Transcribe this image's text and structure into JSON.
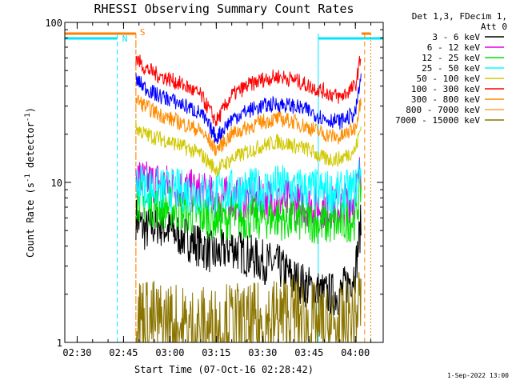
{
  "chart_data": {
    "type": "line",
    "title": "RHESSI Observing Summary Count Rates",
    "xlabel": "Start Time (07-Oct-16 02:28:42)",
    "ylabel_prefix": "Count Rate (s",
    "ylabel_sup": "-1",
    "ylabel_suffix": " detector",
    "ylabel_sup2": "-1",
    "ylabel_close": ")",
    "y_scale": "log",
    "ylim": [
      1,
      100
    ],
    "xlim": [
      "02:26",
      "04:09"
    ],
    "x_ticks": [
      "02:30",
      "02:45",
      "03:00",
      "03:15",
      "03:30",
      "03:45",
      "04:00"
    ],
    "y_ticks": [
      "1",
      "10",
      "100"
    ],
    "grid": false,
    "legend_header": [
      "Det 1,3, FDecim 1,",
      "Att 0"
    ],
    "legend_position": "right",
    "timestamp": "1-Sep-2022 13:00",
    "flag_labels": {
      "night": "N",
      "saa": "S"
    },
    "flags": {
      "night_intervals": [
        [
          "02:26",
          "02:43"
        ],
        [
          "03:48",
          "04:09"
        ]
      ],
      "saa_intervals": [
        [
          "02:26",
          "02:49"
        ],
        [
          "04:02",
          "04:05"
        ]
      ],
      "data_gap": [
        "02:45",
        "02:49"
      ],
      "data_end": "04:03"
    },
    "series": [
      {
        "name": "3 - 6 keV",
        "color": "#000000",
        "points": [
          [
            "02:49",
            6
          ],
          [
            "02:52",
            5
          ],
          [
            "02:56",
            5.5
          ],
          [
            "03:00",
            5
          ],
          [
            "03:05",
            4.5
          ],
          [
            "03:10",
            4
          ],
          [
            "03:15",
            3.5
          ],
          [
            "03:20",
            4
          ],
          [
            "03:25",
            3.5
          ],
          [
            "03:30",
            3.2
          ],
          [
            "03:35",
            3
          ],
          [
            "03:40",
            2.5
          ],
          [
            "03:45",
            2.2
          ],
          [
            "03:50",
            2
          ],
          [
            "03:55",
            2
          ],
          [
            "04:00",
            2.8
          ],
          [
            "04:02",
            6
          ]
        ]
      },
      {
        "name": "6 - 12 keV",
        "color": "#e000e0",
        "points": [
          [
            "02:49",
            11
          ],
          [
            "02:52",
            10
          ],
          [
            "02:56",
            10
          ],
          [
            "03:00",
            9.5
          ],
          [
            "03:05",
            9
          ],
          [
            "03:10",
            8.5
          ],
          [
            "03:15",
            8
          ],
          [
            "03:20",
            8
          ],
          [
            "03:25",
            7.8
          ],
          [
            "03:30",
            8
          ],
          [
            "03:35",
            7.8
          ],
          [
            "03:40",
            7.5
          ],
          [
            "03:45",
            7.2
          ],
          [
            "03:50",
            7
          ],
          [
            "03:55",
            7
          ],
          [
            "04:00",
            8
          ],
          [
            "04:02",
            13
          ]
        ]
      },
      {
        "name": "12 - 25 keV",
        "color": "#00e000",
        "points": [
          [
            "02:49",
            8
          ],
          [
            "02:52",
            7.5
          ],
          [
            "02:56",
            7
          ],
          [
            "03:00",
            7
          ],
          [
            "03:05",
            6.5
          ],
          [
            "03:10",
            6.2
          ],
          [
            "03:15",
            6
          ],
          [
            "03:20",
            6
          ],
          [
            "03:25",
            6
          ],
          [
            "03:30",
            6
          ],
          [
            "03:35",
            6
          ],
          [
            "03:40",
            5.8
          ],
          [
            "03:45",
            5.8
          ],
          [
            "03:50",
            5.5
          ],
          [
            "03:55",
            5.5
          ],
          [
            "04:00",
            6
          ],
          [
            "04:02",
            10
          ]
        ]
      },
      {
        "name": "25 - 50 keV",
        "color": "#00ffff",
        "points": [
          [
            "02:49",
            10
          ],
          [
            "02:52",
            9.5
          ],
          [
            "02:56",
            9
          ],
          [
            "03:00",
            9
          ],
          [
            "03:05",
            8.8
          ],
          [
            "03:10",
            8.5
          ],
          [
            "03:15",
            8.5
          ],
          [
            "03:20",
            8.8
          ],
          [
            "03:25",
            9
          ],
          [
            "03:30",
            9
          ],
          [
            "03:35",
            9.5
          ],
          [
            "03:40",
            9.2
          ],
          [
            "03:45",
            9
          ],
          [
            "03:50",
            8.8
          ],
          [
            "03:55",
            8.5
          ],
          [
            "04:00",
            9
          ],
          [
            "04:02",
            14
          ]
        ]
      },
      {
        "name": "50 - 100 keV",
        "color": "#d0c800",
        "points": [
          [
            "02:49",
            22
          ],
          [
            "02:52",
            20
          ],
          [
            "02:56",
            19
          ],
          [
            "03:00",
            18
          ],
          [
            "03:05",
            16.5
          ],
          [
            "03:10",
            15
          ],
          [
            "03:15",
            12
          ],
          [
            "03:20",
            14
          ],
          [
            "03:25",
            15.5
          ],
          [
            "03:30",
            17
          ],
          [
            "03:35",
            18
          ],
          [
            "03:40",
            17
          ],
          [
            "03:45",
            16
          ],
          [
            "03:50",
            14
          ],
          [
            "03:55",
            14
          ],
          [
            "04:00",
            16
          ],
          [
            "04:02",
            23
          ]
        ]
      },
      {
        "name": "100 - 300 keV",
        "color": "#ff0000",
        "points": [
          [
            "02:49",
            60
          ],
          [
            "02:52",
            52
          ],
          [
            "02:56",
            47
          ],
          [
            "03:00",
            44
          ],
          [
            "03:05",
            40
          ],
          [
            "03:10",
            35
          ],
          [
            "03:15",
            24
          ],
          [
            "03:20",
            35
          ],
          [
            "03:25",
            40
          ],
          [
            "03:30",
            44
          ],
          [
            "03:35",
            46
          ],
          [
            "03:40",
            44
          ],
          [
            "03:45",
            40
          ],
          [
            "03:50",
            37
          ],
          [
            "03:55",
            34
          ],
          [
            "04:00",
            40
          ],
          [
            "04:02",
            65
          ]
        ]
      },
      {
        "name": "300 - 800 keV",
        "color": "#ff8c00",
        "points": [
          [
            "02:49",
            33
          ],
          [
            "02:52",
            30
          ],
          [
            "02:56",
            27
          ],
          [
            "03:00",
            25
          ],
          [
            "03:05",
            23
          ],
          [
            "03:10",
            21
          ],
          [
            "03:15",
            16
          ],
          [
            "03:20",
            20
          ],
          [
            "03:25",
            22
          ],
          [
            "03:30",
            24
          ],
          [
            "03:35",
            25
          ],
          [
            "03:40",
            24
          ],
          [
            "03:45",
            22
          ],
          [
            "03:50",
            20
          ],
          [
            "03:55",
            19
          ],
          [
            "04:00",
            22
          ],
          [
            "04:02",
            35
          ]
        ]
      },
      {
        "name": "800 - 7000 keV",
        "color": "#ffa040",
        "points": []
      },
      {
        "name": "7000 - 15000 keV",
        "color": "#8b7500",
        "points": [
          [
            "02:49",
            1.5
          ],
          [
            "02:52",
            1.4
          ],
          [
            "02:56",
            1.3
          ],
          [
            "03:00",
            1.3
          ],
          [
            "03:05",
            1.2
          ],
          [
            "03:10",
            1.2
          ],
          [
            "03:15",
            1.2
          ],
          [
            "03:20",
            1.3
          ],
          [
            "03:25",
            1.2
          ],
          [
            "03:30",
            1.3
          ],
          [
            "03:35",
            1.4
          ],
          [
            "03:40",
            1.5
          ],
          [
            "03:45",
            1.3
          ],
          [
            "03:50",
            1.2
          ],
          [
            "03:55",
            1.2
          ],
          [
            "04:00",
            1.4
          ],
          [
            "04:02",
            2
          ]
        ]
      },
      {
        "name": "blue",
        "color": "#0000ff",
        "legend": false,
        "points": [
          [
            "02:49",
            44
          ],
          [
            "02:52",
            39
          ],
          [
            "02:56",
            35
          ],
          [
            "03:00",
            33
          ],
          [
            "03:05",
            30
          ],
          [
            "03:10",
            27
          ],
          [
            "03:15",
            19
          ],
          [
            "03:20",
            25
          ],
          [
            "03:25",
            28
          ],
          [
            "03:30",
            30
          ],
          [
            "03:35",
            31
          ],
          [
            "03:40",
            30
          ],
          [
            "03:45",
            28
          ],
          [
            "03:50",
            25
          ],
          [
            "03:55",
            24
          ],
          [
            "04:00",
            27
          ],
          [
            "04:02",
            48
          ]
        ]
      }
    ]
  }
}
